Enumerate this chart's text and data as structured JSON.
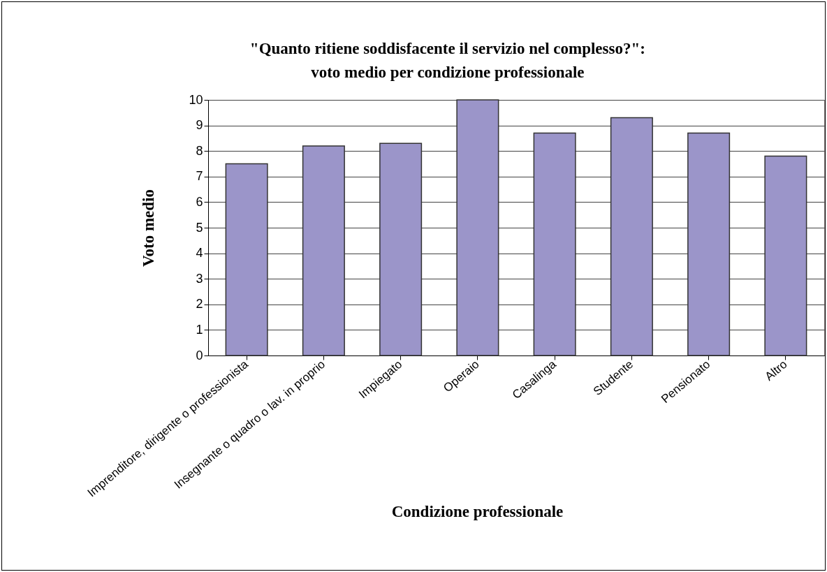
{
  "chart_data": {
    "type": "bar",
    "title": [
      "\"Quanto ritiene soddisfacente il servizio nel complesso?\":",
      "voto medio per condizione professionale"
    ],
    "xlabel": "Condizione professionale",
    "ylabel": "Voto medio",
    "categories": [
      "Imprenditore, dirigente o professionista",
      "Insegnante o quadro o lav. in proprio",
      "Impiegato",
      "Operaio",
      "Casalinga",
      "Studente",
      "Pensionato",
      "Altro"
    ],
    "values": [
      7.5,
      8.2,
      8.3,
      10,
      8.7,
      9.3,
      8.7,
      7.8
    ],
    "color": "#9b95c9",
    "ylim": [
      0,
      10
    ],
    "yticks": [
      0,
      1,
      2,
      3,
      4,
      5,
      6,
      7,
      8,
      9,
      10
    ],
    "grid": "y"
  }
}
